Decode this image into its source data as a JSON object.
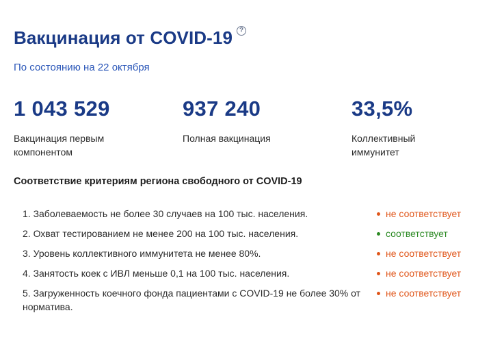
{
  "header": {
    "title": "Вакцинация от COVID-19",
    "help_glyph": "?",
    "subtitle": "По состоянию на 22 октября"
  },
  "stats": [
    {
      "value": "1 043 529",
      "label": "Вакцинация первым компонентом"
    },
    {
      "value": "937 240",
      "label": "Полная вакцинация"
    },
    {
      "value": "33,5%",
      "label": "Коллективный иммунитет"
    }
  ],
  "criteria": {
    "title": "Соответствие критериям региона свободного от COVID-19",
    "items": [
      {
        "text": "1. Заболеваемость не более 30 случаев на 100 тыс. населения.",
        "status": "не соответствует",
        "ok": false
      },
      {
        "text": "2. Охват тестированием не менее 200 на 100 тыс. населения.",
        "status": "соответствует",
        "ok": true
      },
      {
        "text": "3. Уровень коллективного иммунитета не менее 80%.",
        "status": "не соответствует",
        "ok": false
      },
      {
        "text": "4. Занятость коек с ИВЛ меньше 0,1 на 100 тыс. населения.",
        "status": "не соответствует",
        "ok": false
      },
      {
        "text": "5. Загруженность коечного фонда пациентами с COVID-19 не более 30% от норматива.",
        "status": "не соответствует",
        "ok": false
      }
    ]
  },
  "colors": {
    "title": "#1a3a86",
    "subtitle": "#2a56b8",
    "status_bad": "#e0561a",
    "status_good": "#2c8a24"
  },
  "icons": {
    "help": "question-circle-icon",
    "status_dot": "status-dot-icon"
  }
}
